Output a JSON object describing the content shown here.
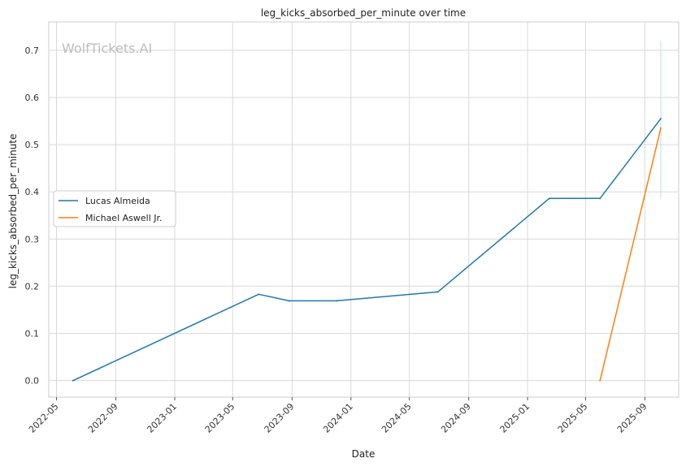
{
  "chart_data": {
    "type": "line",
    "title": "leg_kicks_absorbed_per_minute over time",
    "xlabel": "Date",
    "ylabel": "leg_kicks_absorbed_per_minute",
    "watermark": "WolfTickets.AI",
    "x_ticks": [
      "2022-05",
      "2022-09",
      "2023-01",
      "2023-05",
      "2023-09",
      "2024-01",
      "2024-05",
      "2024-09",
      "2025-01",
      "2025-05",
      "2025-09"
    ],
    "y_ticks": [
      "0.0",
      "0.1",
      "0.2",
      "0.3",
      "0.4",
      "0.5",
      "0.6",
      "0.7"
    ],
    "xlim": [
      "2022-04-15",
      "2025-11-10"
    ],
    "ylim": [
      -0.035,
      0.76
    ],
    "grid": true,
    "legend_position": "center-left",
    "series": [
      {
        "name": "Lucas Almeida",
        "color": "#1f77b4",
        "points": [
          {
            "x": "2022-06-04",
            "y": 0.0
          },
          {
            "x": "2023-06-24",
            "y": 0.183
          },
          {
            "x": "2023-08-26",
            "y": 0.169
          },
          {
            "x": "2023-12-02",
            "y": 0.169
          },
          {
            "x": "2024-06-29",
            "y": 0.188
          },
          {
            "x": "2025-02-15",
            "y": 0.386
          },
          {
            "x": "2025-05-31",
            "y": 0.386
          },
          {
            "x": "2025-10-04",
            "y": 0.555
          }
        ]
      },
      {
        "name": "Michael Aswell Jr.",
        "color": "#ff7f0e",
        "points": [
          {
            "x": "2025-05-31",
            "y": 0.0
          },
          {
            "x": "2025-10-04",
            "y": 0.535
          }
        ]
      }
    ],
    "annotation_band": {
      "x": "2025-10-04",
      "y_range": [
        0.385,
        0.72
      ],
      "color": "#b7e4dc"
    }
  }
}
